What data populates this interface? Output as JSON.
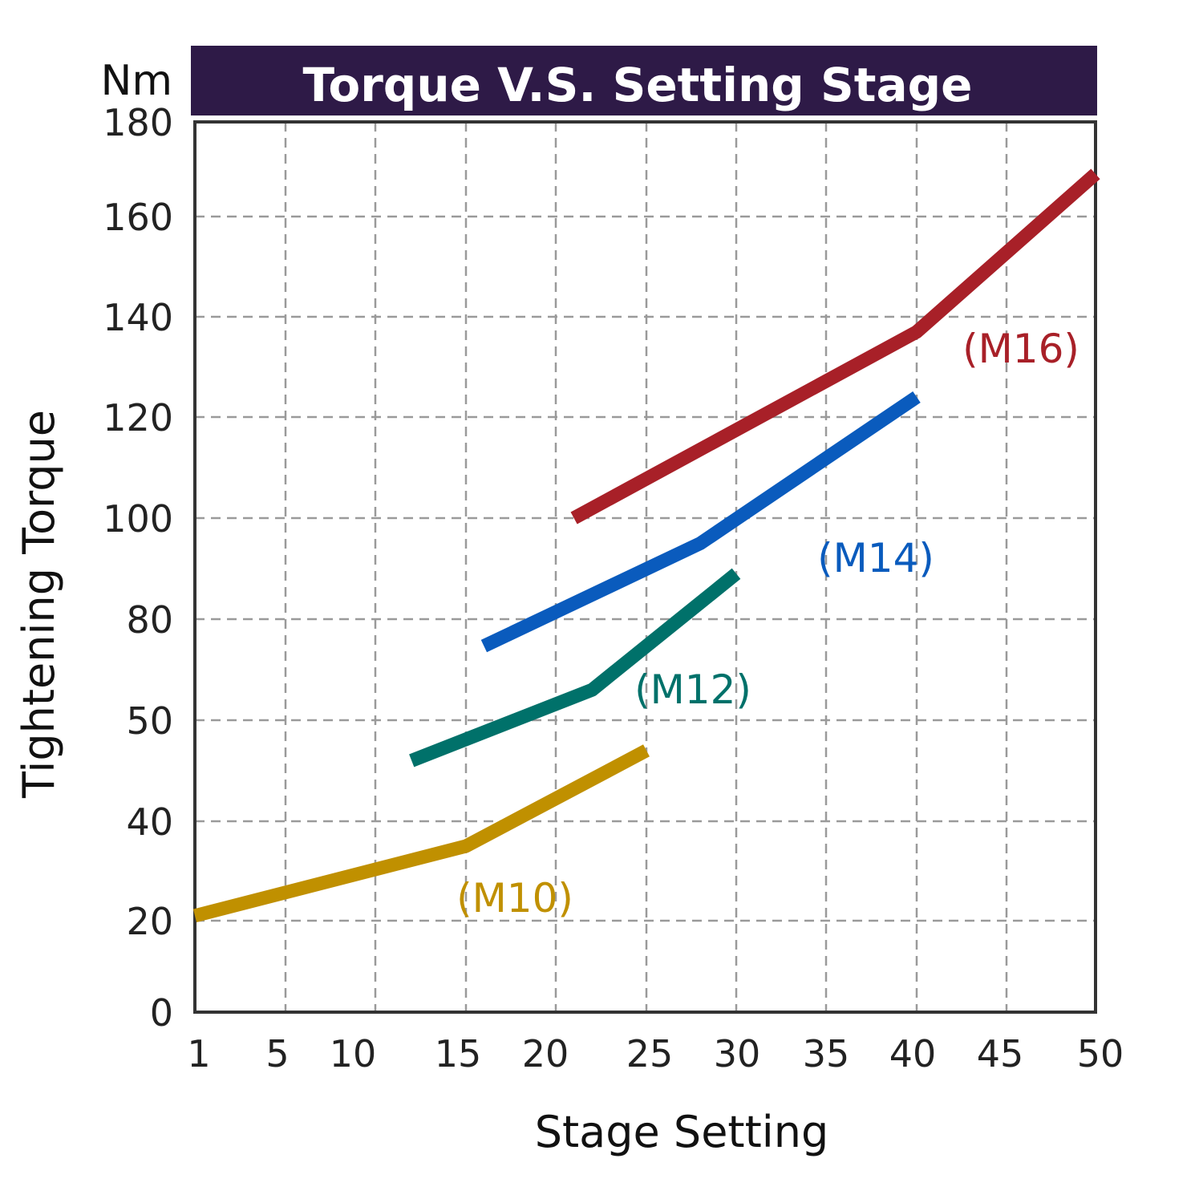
{
  "chart_data": {
    "type": "line",
    "title": "Torque V.S. Setting Stage",
    "unit": "Nm",
    "xlabel": "Stage Setting",
    "ylabel": "Tightening Torque",
    "x_ticks": [
      "1",
      "5",
      "10",
      "15",
      "20",
      "25",
      "30",
      "35",
      "40",
      "45",
      "50"
    ],
    "y_ticks": [
      "0",
      "20",
      "40",
      "50",
      "80",
      "100",
      "120",
      "140",
      "160",
      "180"
    ],
    "grid": true,
    "colors": {
      "title_bar": "#2e1a47",
      "frame": "#333333",
      "M10": "#c09000",
      "M12": "#00716a",
      "M14": "#0a5bbd",
      "M16": "#a82028"
    },
    "series": [
      {
        "name": "(M10)",
        "color_key": "M10",
        "points": [
          [
            "1",
            21
          ],
          [
            "15",
            35
          ],
          [
            "25",
            47
          ]
        ]
      },
      {
        "name": "(M12)",
        "color_key": "M12",
        "points": [
          [
            "12",
            46
          ],
          [
            "22",
            59
          ],
          [
            "30",
            89
          ]
        ]
      },
      {
        "name": "(M14)",
        "color_key": "M14",
        "points": [
          [
            "16",
            72
          ],
          [
            "28",
            95
          ],
          [
            "40",
            124
          ]
        ]
      },
      {
        "name": "(M16)",
        "color_key": "M16",
        "points": [
          [
            "21",
            100
          ],
          [
            "40",
            137
          ],
          [
            "50",
            169
          ]
        ]
      }
    ]
  }
}
